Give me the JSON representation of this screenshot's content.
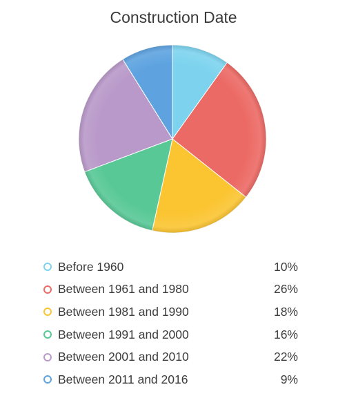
{
  "chart_data": {
    "type": "pie",
    "title": "Construction Date",
    "categories": [
      "Before 1960",
      "Between 1961 and 1980",
      "Between 1981 and 1990",
      "Between 1991 and 2000",
      "Between 2001 and 2010",
      "Between 2011 and 2016"
    ],
    "values": [
      10,
      26,
      18,
      16,
      22,
      9
    ],
    "value_labels": [
      "10%",
      "26%",
      "18%",
      "16%",
      "22%",
      "9%"
    ],
    "colors": [
      "#7dd3ee",
      "#ec6a65",
      "#fbc532",
      "#58c896",
      "#b999c9",
      "#5ea3e0"
    ],
    "start": "12 o'clock",
    "direction": "clockwise",
    "legend_position": "bottom"
  }
}
